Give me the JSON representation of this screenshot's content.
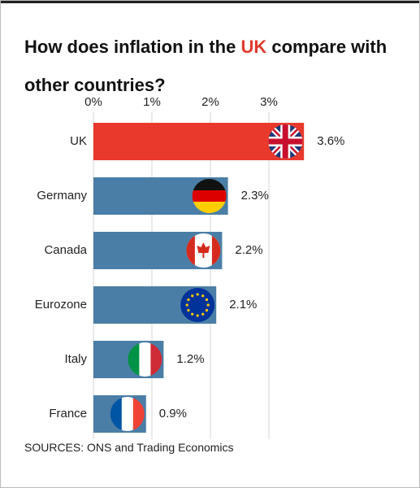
{
  "chart_data": {
    "type": "hbar",
    "title": "How does inflation in the UK compare with other countries?",
    "title_highlight": {
      "text": "UK",
      "color": "#e03a2f"
    },
    "categories": [
      "UK",
      "Germany",
      "Canada",
      "Eurozone",
      "Italy",
      "France"
    ],
    "values": [
      3.6,
      2.3,
      2.2,
      2.1,
      1.2,
      0.9
    ],
    "value_labels": [
      "3.6%",
      "2.3%",
      "2.2%",
      "2.1%",
      "1.2%",
      "0.9%"
    ],
    "colors": [
      "#e8392c",
      "#4a7ea6",
      "#4a7ea6",
      "#4a7ea6",
      "#4a7ea6",
      "#4a7ea6"
    ],
    "xlim": [
      0,
      5
    ],
    "xticks": [
      {
        "value": 0,
        "label": "0%"
      },
      {
        "value": 1,
        "label": "1%"
      },
      {
        "value": 2,
        "label": "2%"
      },
      {
        "value": 3,
        "label": "3%"
      }
    ],
    "grid": true,
    "source": "SOURCES: ONS and Trading Economics"
  }
}
